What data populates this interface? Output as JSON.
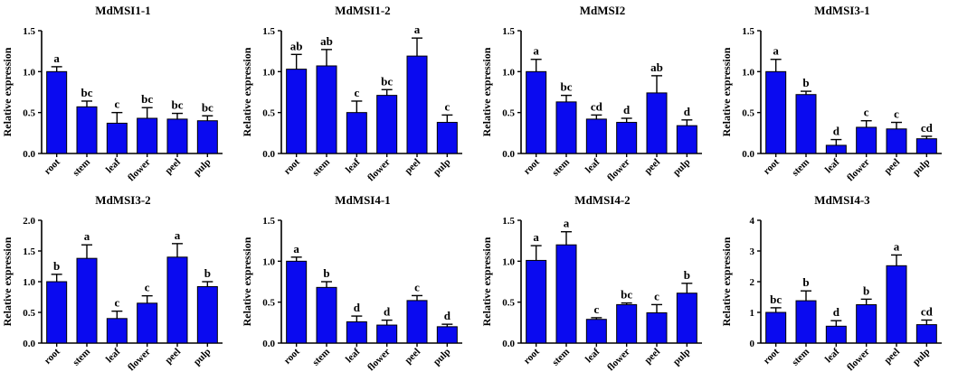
{
  "figure": {
    "bar_color": "#0a0af0",
    "axis_color": "#000000"
  },
  "chart_data": [
    {
      "type": "bar",
      "title": "MdMSI1-1",
      "ylabel": "Relative expression",
      "ylim": [
        0,
        1.5
      ],
      "yticks": [
        "0.0",
        "0.5",
        "1.0",
        "1.5"
      ],
      "categories": [
        "root",
        "stem",
        "leaf",
        "flower",
        "peel",
        "pulp"
      ],
      "values": [
        1.0,
        0.57,
        0.37,
        0.43,
        0.42,
        0.4
      ],
      "errors": [
        0.06,
        0.07,
        0.13,
        0.13,
        0.07,
        0.06
      ],
      "labels": [
        "a",
        "bc",
        "c",
        "bc",
        "bc",
        "bc"
      ]
    },
    {
      "type": "bar",
      "title": "MdMSI1-2",
      "ylabel": "Relative expression",
      "ylim": [
        0,
        1.5
      ],
      "yticks": [
        "0.0",
        "0.5",
        "1.0",
        "1.5"
      ],
      "categories": [
        "root",
        "stem",
        "leaf",
        "flower",
        "peel",
        "pulp"
      ],
      "values": [
        1.03,
        1.07,
        0.5,
        0.71,
        1.19,
        0.38
      ],
      "errors": [
        0.18,
        0.2,
        0.14,
        0.07,
        0.22,
        0.09
      ],
      "labels": [
        "ab",
        "ab",
        "c",
        "bc",
        "a",
        "c"
      ]
    },
    {
      "type": "bar",
      "title": "MdMSI2",
      "ylabel": "Relative expression",
      "ylim": [
        0,
        1.5
      ],
      "yticks": [
        "0.0",
        "0.5",
        "1.0",
        "1.5"
      ],
      "categories": [
        "root",
        "stem",
        "leaf",
        "flower",
        "peel",
        "pulp"
      ],
      "values": [
        1.0,
        0.63,
        0.42,
        0.38,
        0.74,
        0.34
      ],
      "errors": [
        0.15,
        0.08,
        0.05,
        0.05,
        0.21,
        0.07
      ],
      "labels": [
        "a",
        "bc",
        "cd",
        "d",
        "ab",
        "d"
      ]
    },
    {
      "type": "bar",
      "title": "MdMSI3-1",
      "ylabel": "Relative expression",
      "ylim": [
        0,
        1.5
      ],
      "yticks": [
        "0.0",
        "0.5",
        "1.0",
        "1.5"
      ],
      "categories": [
        "root",
        "stem",
        "leaf",
        "flower",
        "peel",
        "pulp"
      ],
      "values": [
        1.0,
        0.72,
        0.1,
        0.32,
        0.3,
        0.18
      ],
      "errors": [
        0.15,
        0.04,
        0.07,
        0.08,
        0.08,
        0.03
      ],
      "labels": [
        "a",
        "b",
        "d",
        "c",
        "c",
        "cd"
      ]
    },
    {
      "type": "bar",
      "title": "MdMSI3-2",
      "ylabel": "Relative expression",
      "ylim": [
        0,
        2.0
      ],
      "yticks": [
        "0.0",
        "0.5",
        "1.0",
        "1.5",
        "2.0"
      ],
      "categories": [
        "root",
        "stem",
        "leaf",
        "flower",
        "peel",
        "pulp"
      ],
      "values": [
        1.0,
        1.38,
        0.4,
        0.65,
        1.4,
        0.92
      ],
      "errors": [
        0.12,
        0.22,
        0.12,
        0.12,
        0.22,
        0.08
      ],
      "labels": [
        "b",
        "a",
        "c",
        "c",
        "a",
        "b"
      ]
    },
    {
      "type": "bar",
      "title": "MdMSI4-1",
      "ylabel": "Relative expression",
      "ylim": [
        0,
        1.5
      ],
      "yticks": [
        "0.0",
        "0.5",
        "1.0",
        "1.5"
      ],
      "categories": [
        "root",
        "stem",
        "leaf",
        "flower",
        "peel",
        "pulp"
      ],
      "values": [
        1.0,
        0.68,
        0.26,
        0.22,
        0.52,
        0.2
      ],
      "errors": [
        0.05,
        0.07,
        0.07,
        0.06,
        0.06,
        0.03
      ],
      "labels": [
        "a",
        "b",
        "d",
        "d",
        "c",
        "d"
      ]
    },
    {
      "type": "bar",
      "title": "MdMSI4-2",
      "ylabel": "Relative expression",
      "ylim": [
        0,
        1.5
      ],
      "yticks": [
        "0.0",
        "0.5",
        "1.0",
        "1.5"
      ],
      "categories": [
        "root",
        "stem",
        "leaf",
        "flower",
        "peel",
        "pulp"
      ],
      "values": [
        1.01,
        1.2,
        0.29,
        0.47,
        0.37,
        0.61
      ],
      "errors": [
        0.18,
        0.16,
        0.02,
        0.02,
        0.1,
        0.12
      ],
      "labels": [
        "a",
        "a",
        "c",
        "bc",
        "c",
        "b"
      ]
    },
    {
      "type": "bar",
      "title": "MdMSI4-3",
      "ylabel": "Relative expression",
      "ylim": [
        0,
        4
      ],
      "yticks": [
        "0",
        "1",
        "2",
        "3",
        "4"
      ],
      "categories": [
        "root",
        "stem",
        "leaf",
        "flower",
        "peel",
        "pulp"
      ],
      "values": [
        1.0,
        1.38,
        0.55,
        1.25,
        2.52,
        0.6
      ],
      "errors": [
        0.15,
        0.32,
        0.18,
        0.18,
        0.35,
        0.15
      ],
      "labels": [
        "bc",
        "b",
        "d",
        "b",
        "a",
        "cd"
      ]
    }
  ]
}
